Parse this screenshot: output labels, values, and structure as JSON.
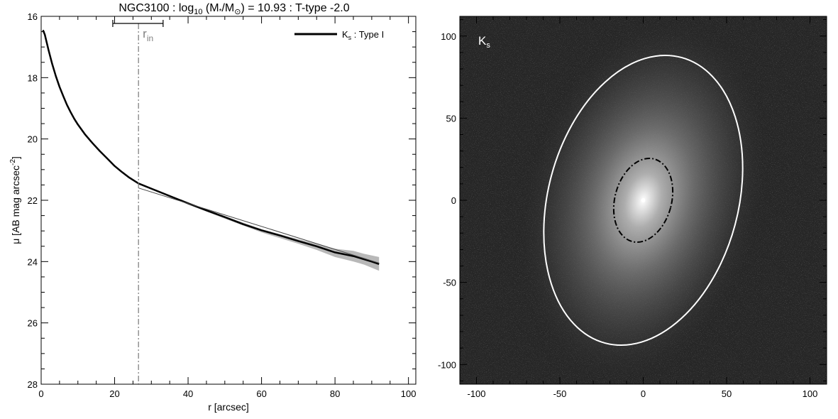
{
  "chart_data": [
    {
      "type": "line",
      "title": {
        "prefix": "NGC3100 : log",
        "sub": "10",
        "mid1": " (M",
        "star": "*",
        "mid2": "/M",
        "sun": "⊙",
        "suffix": ") = 10.93 : T-type -2.0"
      },
      "xlabel": "r [arcsec]",
      "ylabel": {
        "pre": "μ [AB mag arcsec",
        "sup": "-2",
        "post": "]"
      },
      "xlim": [
        0,
        102
      ],
      "ylim": [
        16,
        28
      ],
      "y_inverted": true,
      "xticks": [
        0,
        20,
        40,
        60,
        80,
        100
      ],
      "yticks": [
        16,
        18,
        20,
        22,
        24,
        26,
        28
      ],
      "grid": false,
      "legend": {
        "position": "top-right",
        "entries": [
          {
            "main": "K",
            "sub": "s",
            "rest": " : Type I"
          }
        ]
      },
      "annotation": {
        "main": "r",
        "sub": "in",
        "x": 26.5,
        "error_bar": [
          19.5,
          33.2
        ]
      },
      "series": [
        {
          "style": "thick-black",
          "x": [
            0.5,
            1,
            1.5,
            2,
            3,
            4,
            5,
            6,
            7,
            8,
            9,
            10,
            12,
            14,
            16,
            18,
            20,
            22,
            24,
            26.5,
            30,
            35,
            40,
            45,
            50,
            55,
            60,
            65,
            70,
            75,
            80,
            85,
            90,
            92
          ],
          "y": [
            16.45,
            16.6,
            16.85,
            17.1,
            17.55,
            17.95,
            18.3,
            18.6,
            18.88,
            19.12,
            19.34,
            19.53,
            19.86,
            20.14,
            20.4,
            20.64,
            20.88,
            21.08,
            21.26,
            21.45,
            21.62,
            21.86,
            22.1,
            22.33,
            22.55,
            22.78,
            22.98,
            23.15,
            23.33,
            23.5,
            23.7,
            23.82,
            24.0,
            24.08
          ]
        },
        {
          "style": "thin-fit",
          "x": [
            26.5,
            92
          ],
          "y": [
            21.6,
            24.05
          ]
        }
      ],
      "uncertainty_band": {
        "x": [
          26.5,
          40,
          50,
          60,
          70,
          75,
          80,
          85,
          88,
          92
        ],
        "lower": [
          21.45,
          22.08,
          22.52,
          22.94,
          23.27,
          23.42,
          23.58,
          23.65,
          23.75,
          23.85
        ],
        "upper": [
          21.48,
          22.14,
          22.6,
          23.05,
          23.42,
          23.62,
          23.85,
          24.0,
          24.1,
          24.3
        ]
      }
    },
    {
      "type": "heatmap",
      "band": {
        "main": "K",
        "sub": "s"
      },
      "xlim": [
        -110,
        110
      ],
      "ylim": [
        -112,
        112
      ],
      "xticks": [
        -100,
        -50,
        0,
        50,
        100
      ],
      "yticks": [
        -100,
        -50,
        0,
        50,
        100
      ],
      "grid": false,
      "ellipses": [
        {
          "style": "white-solid",
          "center": [
            0,
            0
          ],
          "semi_major": 90,
          "semi_minor": 57,
          "pa_deg": 15
        },
        {
          "style": "black-dashdot",
          "center": [
            0,
            0
          ],
          "semi_major": 26,
          "semi_minor": 17,
          "pa_deg": 15
        }
      ]
    }
  ]
}
